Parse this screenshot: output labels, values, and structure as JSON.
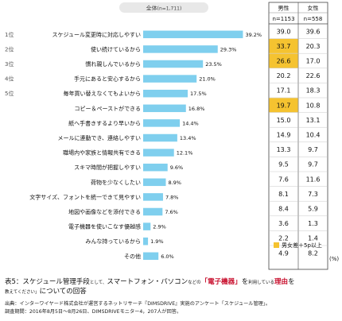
{
  "chart_data": {
    "type": "bar",
    "header": {
      "label": "全体",
      "n": "(n=1,711)"
    },
    "ranks": [
      "1位",
      "2位",
      "3位",
      "4位",
      "5位"
    ],
    "categories": [
      "スケジュール変更時に対応しやすい",
      "使い続けているから",
      "慣れ親しんでいるから",
      "手元にあると安心するから",
      "毎年買い替えなくてもよいから",
      "コピー＆ペーストができる",
      "紙へ手書きするより早いから",
      "メールに連動でき、連絡しやすい",
      "職場内や家族と情報共有できる",
      "スキマ時間が把握しやすい",
      "荷物を少なくしたい",
      "文字サイズ、フォントを統一できて見やすい",
      "地図や画像などを添付できる",
      "電子機器を使いこなす優越感",
      "みんな持っているから",
      "その他"
    ],
    "values": [
      39.2,
      29.3,
      23.5,
      21.0,
      17.5,
      16.8,
      14.4,
      13.4,
      12.1,
      9.6,
      8.9,
      7.8,
      7.6,
      2.9,
      1.9,
      6.0
    ],
    "value_labels": [
      "39.2%",
      "29.3%",
      "23.5%",
      "21.0%",
      "17.5%",
      "16.8%",
      "14.4%",
      "13.4%",
      "12.1%",
      "9.6%",
      "8.9%",
      "7.8%",
      "7.6%",
      "2.9%",
      "1.9%",
      "6.0%"
    ],
    "bar_color": "#7fcfee",
    "table": {
      "columns": [
        {
          "name": "男性",
          "n": "n=1153",
          "values": [
            "39.0",
            "33.7",
            "26.6",
            "20.2",
            "17.1",
            "19.7",
            "15.0",
            "14.9",
            "13.3",
            "9.5",
            "7.6",
            "8.1",
            "8.4",
            "3.6",
            "2.2",
            "4.9"
          ]
        },
        {
          "name": "女性",
          "n": "n=558",
          "values": [
            "39.6",
            "20.3",
            "17.0",
            "22.6",
            "18.3",
            "10.8",
            "13.1",
            "10.4",
            "9.7",
            "9.7",
            "11.6",
            "7.3",
            "5.9",
            "1.3",
            "1.4",
            "8.2"
          ]
        }
      ],
      "highlight_rows": [
        1,
        2,
        5
      ],
      "highlight_color": "#f5c330",
      "unit": "(%)"
    },
    "legend": "男女差＋5p以上"
  },
  "caption": {
    "prefix": "表5",
    "part1": "：スケジュール管理手段",
    "small1": "として、",
    "part2": "スマートフォン・パソコン",
    "small2": "など",
    "part3": "の",
    "red": "「電子機器」",
    "part4": "を",
    "part5": "利用している",
    "part6": "理由",
    "part7": "を",
    "small3": "教えてください」",
    "part8": "についての回答"
  },
  "source": {
    "line1": "出典：インターワイヤード株式会社が運営するネットリサーチ『DIMSDRIVE』実施のアンケート「スケジュール管理」。",
    "line2": "調査期間：2016年8月5日～8月26日、DIMSDRIVEモニター4，207人が回答。"
  }
}
